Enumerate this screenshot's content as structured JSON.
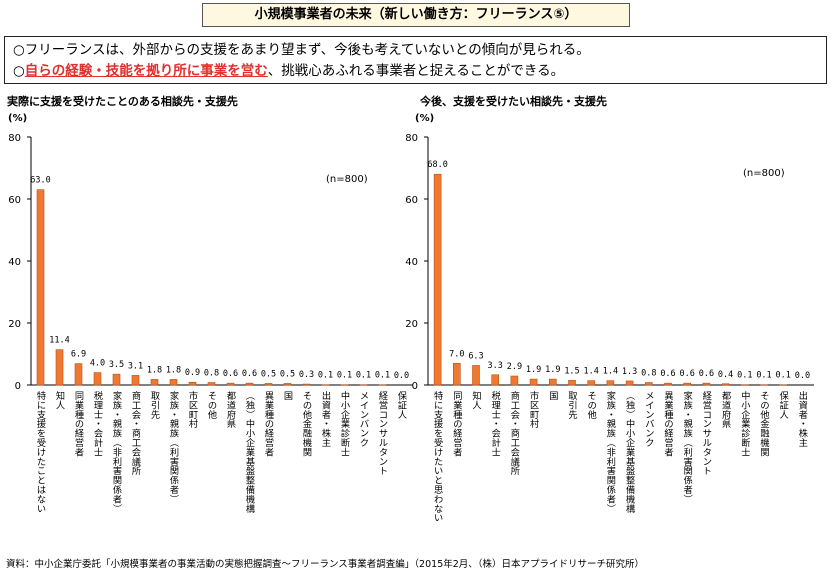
{
  "header": {
    "title": "小規模事業者の未来（新しい働き方：フリーランス⑤）"
  },
  "summary": {
    "line1": "○フリーランスは、外部からの支援をあまり望まず、今後も考えていないとの傾向が見られる。",
    "line2_prefix": "○",
    "line2_highlight": "自らの経験・技能を拠り所に事業を営む",
    "line2_rest": "、挑戦心あふれる事業者と捉えることができる。"
  },
  "colors": {
    "bar": "#f07830",
    "bar_stroke": "#b85018",
    "axis": "#000000"
  },
  "chart_data": [
    {
      "type": "bar",
      "title": "実際に支援を受けたことのある相談先・支援先",
      "ylabel": "(%)",
      "note": "(n=800)",
      "ylim": [
        0,
        80
      ],
      "yticks": [
        0,
        20,
        40,
        60,
        80
      ],
      "categories": [
        "特に支援を受けたことはない",
        "知人",
        "同業種の経営者",
        "税理士・会計士",
        "家族・親族（非利害関係者）",
        "商工会・商工会議所",
        "取引先",
        "家族・親族（利害関係者）",
        "市区町村",
        "その他",
        "都道府県",
        "（独）中小企業基盤整備機構",
        "異業種の経営者",
        "国",
        "その他金融機関",
        "出資者・株主",
        "中小企業診断士",
        "メインバンク",
        "経営コンサルタント",
        "保証人"
      ],
      "values": [
        63.0,
        11.4,
        6.9,
        4.0,
        3.5,
        3.1,
        1.8,
        1.8,
        0.9,
        0.8,
        0.6,
        0.6,
        0.5,
        0.5,
        0.3,
        0.1,
        0.1,
        0.1,
        0.1,
        0.0
      ],
      "labels": [
        "63.0",
        "11.4",
        "6.9",
        "4.0",
        "3.5",
        "3.1",
        "1.8",
        "1.8",
        "0.9",
        "0.8",
        "0.6",
        "0.6",
        "0.5",
        "0.5",
        "0.3",
        "0.1",
        "0.1",
        "0.1",
        "0.1",
        "0.0"
      ]
    },
    {
      "type": "bar",
      "title": "今後、支援を受けたい相談先・支援先",
      "ylabel": "(%)",
      "note": "(n=800)",
      "ylim": [
        0,
        80
      ],
      "yticks": [
        0,
        20,
        40,
        60,
        80
      ],
      "categories": [
        "特に支援を受けたいと思わない",
        "同業種の経営者",
        "知人",
        "税理士・会計士",
        "商工会・商工会議所",
        "市区町村",
        "国",
        "取引先",
        "その他",
        "家族・親族（非利害関係者）",
        "（独）中小企業基盤整備機構",
        "メインバンク",
        "異業種の経営者",
        "家族・親族（利害関係者）",
        "経営コンサルタント",
        "都道府県",
        "中小企業診断士",
        "その他金融機関",
        "保証人",
        "出資者・株主"
      ],
      "values": [
        68.0,
        7.0,
        6.3,
        3.3,
        2.9,
        1.9,
        1.9,
        1.5,
        1.4,
        1.4,
        1.3,
        0.8,
        0.6,
        0.6,
        0.6,
        0.4,
        0.1,
        0.1,
        0.1,
        0.0
      ],
      "labels": [
        "68.0",
        "7.0",
        "6.3",
        "3.3",
        "2.9",
        "1.9",
        "1.9",
        "1.5",
        "1.4",
        "1.4",
        "1.3",
        "0.8",
        "0.6",
        "0.6",
        "0.6",
        "0.4",
        "0.1",
        "0.1",
        "0.1",
        "0.0"
      ]
    }
  ],
  "footer": {
    "source": "資料：中小企業庁委託「小規模事業者の事業活動の実態把握調査～フリーランス事業者調査編」（2015年2月、（株）日本アプライドリサーチ研究所）"
  }
}
